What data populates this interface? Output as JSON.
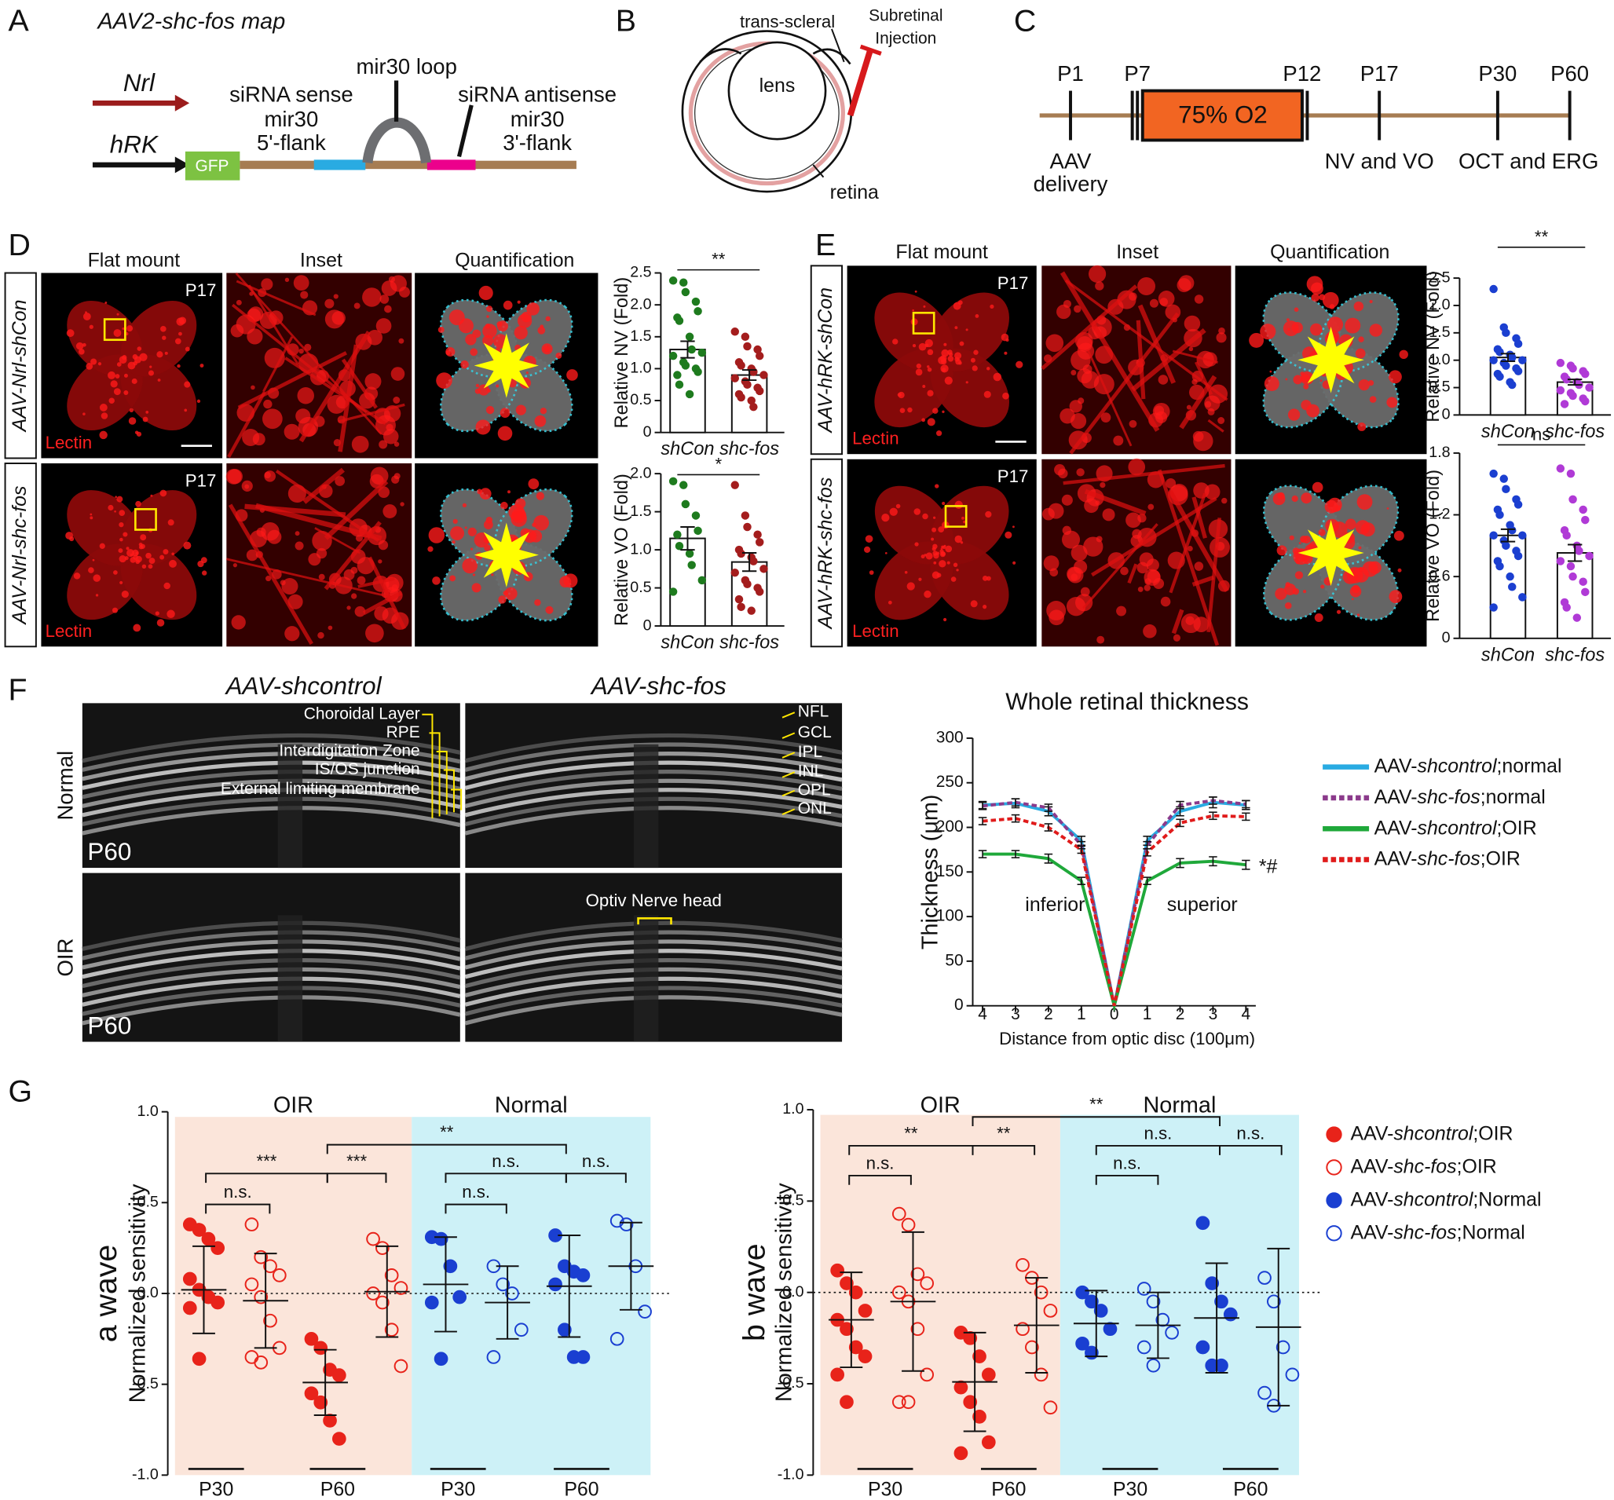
{
  "panel_labels": [
    "A",
    "B",
    "C",
    "D",
    "E",
    "F",
    "G"
  ],
  "panel_a": {
    "title": "AAV2-shc-fos map",
    "promoters": [
      "Nrl",
      "hRK"
    ],
    "reporter": "GFP",
    "elements": [
      "siRNA sense",
      "mir30",
      "5'-flank",
      "mir30 loop",
      "siRNA antisense",
      "mir30",
      "3'-flank"
    ]
  },
  "panel_b": {
    "labels": [
      "trans-scleral",
      "Subretinal",
      "Injection",
      "lens",
      "retina"
    ]
  },
  "panel_c": {
    "timepoints": [
      "P1",
      "P7",
      "P12",
      "P17",
      "P30",
      "P60"
    ],
    "condition": "75% O2",
    "events": [
      "AAV",
      "delivery",
      "NV and VO",
      "OCT and ERG"
    ]
  },
  "panel_d": {
    "columns": [
      "Flat mount",
      "Inset",
      "Quantification"
    ],
    "rows": [
      "AAV-Nrl-shCon",
      "AAV-Nrl-shc-fos"
    ],
    "age": [
      "P17",
      "P17"
    ],
    "stain": [
      "Lectin",
      "Lectin"
    ]
  },
  "panel_e": {
    "columns": [
      "Flat mount",
      "Inset",
      "Quantification"
    ],
    "rows": [
      "AAV-hRK-shCon",
      "AAV-hRK-shc-fos"
    ],
    "age": [
      "P17",
      "P17"
    ],
    "stain": [
      "Lectin",
      "Lectin"
    ]
  },
  "panel_f": {
    "columns": [
      "AAV-shcontrol",
      "AAV-shc-fos"
    ],
    "rows": [
      "Normal",
      "OIR"
    ],
    "ages": [
      "P60",
      "P60"
    ],
    "layers_left": [
      "Choroidal Layer",
      "RPE",
      "Interdigitation Zone",
      "IS/OS junction",
      "External limiting membrane"
    ],
    "layers_right": [
      "NFL",
      "GCL",
      "IPL",
      "INL",
      "OPL",
      "ONL"
    ],
    "annotation": "Optiv Nerve head"
  },
  "chart_data": [
    {
      "type": "bar",
      "y_label": "Relative NV (Fold)",
      "categories": [
        "shCon",
        "shc-fos"
      ],
      "values": [
        1.3,
        0.9
      ],
      "errors": [
        0.13,
        0.08
      ],
      "colors": [
        "#1e7b1e",
        "#a41d1d"
      ],
      "significance": "**",
      "ylim": [
        0,
        2.5
      ],
      "yticks": [
        0,
        0.5,
        {
          "value": 1,
          "label": "1.0"
        },
        1.5,
        {
          "value": 2,
          "label": "2.0"
        },
        2.5
      ],
      "points": [
        [
          2.38,
          2.35,
          2.2,
          2.05,
          1.9,
          1.8,
          1.75,
          1.5,
          1.3,
          1.25,
          1.2,
          1.1,
          1.05,
          1.0,
          0.95,
          0.9,
          0.75,
          0.6
        ],
        [
          1.58,
          1.5,
          1.35,
          1.3,
          1.2,
          1.1,
          1.05,
          1.0,
          0.95,
          0.9,
          0.85,
          0.8,
          0.75,
          0.7,
          0.65,
          0.6,
          0.55,
          0.5,
          0.4
        ]
      ]
    },
    {
      "type": "bar",
      "y_label": "Relative VO (Fold)",
      "categories": [
        "shCon",
        "shc-fos"
      ],
      "values": [
        1.15,
        0.84
      ],
      "errors": [
        0.15,
        0.12
      ],
      "colors": [
        "#1e7b1e",
        "#a41d1d"
      ],
      "significance": "*",
      "ylim": [
        0,
        2
      ],
      "yticks": [
        0,
        0.5,
        {
          "value": 1,
          "label": "1.0"
        },
        1.5,
        {
          "value": 2,
          "label": "2.0"
        }
      ],
      "points": [
        [
          1.9,
          1.85,
          1.6,
          1.45,
          1.25,
          1.2,
          1.05,
          0.95,
          0.8,
          0.6,
          0.45
        ],
        [
          1.85,
          1.45,
          1.3,
          1.2,
          1.1,
          1.0,
          0.95,
          0.9,
          0.85,
          0.75,
          0.7,
          0.6,
          0.55,
          0.5,
          0.45,
          0.35,
          0.25,
          0.2
        ]
      ]
    },
    {
      "type": "bar",
      "y_label": "Relative NV (Fold)",
      "categories": [
        "shCon",
        "shc-fos"
      ],
      "values": [
        1.05,
        0.6
      ],
      "errors": [
        0.07,
        0.05
      ],
      "colors": [
        "#1b3fd0",
        "#b03ad6"
      ],
      "significance": "**",
      "ylim": [
        0,
        2.5
      ],
      "yticks": [
        0,
        0.5,
        {
          "value": 1,
          "label": "1.0"
        },
        1.5,
        {
          "value": 2,
          "label": "2.0"
        },
        2.5
      ],
      "points": [
        [
          2.3,
          1.6,
          1.5,
          1.4,
          1.3,
          1.2,
          1.15,
          1.1,
          1.05,
          1.0,
          1.0,
          0.95,
          0.9,
          0.85,
          0.8,
          0.75,
          0.7,
          0.6,
          0.55
        ],
        [
          0.95,
          0.9,
          0.85,
          0.8,
          0.75,
          0.7,
          0.65,
          0.6,
          0.55,
          0.5,
          0.45,
          0.4,
          0.35,
          0.3,
          0.25,
          0.2
        ]
      ]
    },
    {
      "type": "bar",
      "y_label": "Relative VO (Fold)",
      "categories": [
        "shCon",
        "shc-fos"
      ],
      "values": [
        1.0,
        0.83
      ],
      "errors": [
        0.06,
        0.08
      ],
      "colors": [
        "#1b3fd0",
        "#b03ad6"
      ],
      "significance": "ns",
      "ylim": [
        0,
        1.8
      ],
      "yticks": [
        0,
        0.6,
        1.2,
        1.8
      ],
      "points": [
        [
          1.6,
          1.55,
          1.45,
          1.35,
          1.3,
          1.25,
          1.2,
          1.1,
          1.05,
          1.0,
          1.0,
          0.95,
          0.9,
          0.85,
          0.8,
          0.75,
          0.7,
          0.6,
          0.5,
          0.4,
          0.3
        ],
        [
          1.65,
          1.6,
          1.35,
          1.25,
          1.15,
          1.05,
          1.0,
          0.9,
          0.85,
          0.8,
          0.75,
          0.7,
          0.6,
          0.55,
          0.45,
          0.35,
          0.3,
          0.2
        ]
      ]
    },
    {
      "type": "line",
      "title": "Whole retinal thickness",
      "x_label": "Distance from optic disc (100μm)",
      "y_label": "Thickness (μm)",
      "x": [
        -4,
        -3,
        -2,
        -1,
        0,
        1,
        2,
        3,
        4
      ],
      "xlim": [
        -4.3,
        4.3
      ],
      "xticks": [
        {
          "value": -4,
          "label": "4"
        },
        {
          "value": -3,
          "label": "3"
        },
        {
          "value": -2,
          "label": "2"
        },
        {
          "value": -1,
          "label": "1"
        },
        0,
        1,
        2,
        3,
        4
      ],
      "ylim": [
        0,
        300
      ],
      "yticks": [
        0,
        50,
        100,
        150,
        200,
        250,
        300
      ],
      "legend": "right",
      "annotations": [
        "inferior",
        "superior",
        "*#"
      ],
      "series": [
        {
          "name": "AAV-shcontrol;normal",
          "color": "#29abe2",
          "dashed": false,
          "values": [
            225,
            227,
            218,
            185,
            0,
            185,
            218,
            228,
            225
          ],
          "errors": [
            4,
            5,
            5,
            5,
            0,
            5,
            5,
            6,
            5
          ]
        },
        {
          "name": "AAV-shc-fos;normal",
          "color": "#8b3a8b",
          "dashed": true,
          "values": [
            224,
            228,
            222,
            180,
            0,
            180,
            225,
            230,
            226
          ],
          "errors": [
            4,
            4,
            4,
            4,
            0,
            4,
            4,
            4,
            4
          ]
        },
        {
          "name": "AAV-shcontrol;OIR",
          "color": "#1fa83a",
          "dashed": false,
          "values": [
            170,
            170,
            165,
            140,
            0,
            140,
            160,
            162,
            158
          ],
          "errors": [
            4,
            4,
            5,
            4,
            0,
            4,
            5,
            5,
            5
          ]
        },
        {
          "name": "AAV-shc-fos;OIR",
          "color": "#e01b1b",
          "dashed": true,
          "values": [
            207,
            210,
            200,
            175,
            0,
            172,
            205,
            213,
            212
          ],
          "errors": [
            4,
            4,
            4,
            4,
            0,
            4,
            4,
            4,
            4
          ]
        }
      ]
    },
    {
      "type": "dot",
      "y_label_main": "a wave",
      "y_label": "Normalized sensitivity",
      "groups": [
        "OIR",
        "Normal"
      ],
      "group_colors": [
        "#fbe5da",
        "#cdf1f7"
      ],
      "categories": [
        "P30",
        "P60",
        "P30",
        "P60"
      ],
      "ylim": [
        -1,
        1
      ],
      "reference_line": 0,
      "yticks": [
        {
          "value": -1,
          "label": "-1.0"
        },
        -0.5,
        {
          "value": 0,
          "label": "0.0"
        },
        0.5,
        {
          "value": 1,
          "label": "1.0"
        }
      ],
      "significance": [
        "n.s.",
        "***",
        "***",
        "**",
        "n.s.",
        "n.s.",
        "n.s."
      ],
      "series": [
        {
          "color": "#e8231a",
          "filled": true,
          "means": [
            0.02,
            -0.49,
            null,
            null
          ],
          "sd": [
            0.24,
            0.18,
            null,
            null
          ],
          "points": [
            [
              0.38,
              0.35,
              0.3,
              0.25,
              0.08,
              0.02,
              -0.02,
              -0.05,
              -0.08,
              -0.36
            ],
            [
              -0.25,
              -0.3,
              -0.42,
              -0.45,
              -0.55,
              -0.6,
              -0.7,
              -0.8
            ],
            null,
            null
          ]
        },
        {
          "color": "#e8231a",
          "filled": false,
          "means": [
            -0.04,
            0.01,
            null,
            null
          ],
          "sd": [
            0.26,
            0.25,
            null,
            null
          ],
          "points": [
            [
              0.38,
              0.2,
              0.15,
              0.1,
              0.05,
              -0.02,
              -0.15,
              -0.3,
              -0.35,
              -0.38
            ],
            [
              0.3,
              0.25,
              0.1,
              0.03,
              0.0,
              -0.05,
              -0.2,
              -0.4
            ],
            null,
            null
          ]
        },
        {
          "color": "#1a3fd1",
          "filled": true,
          "means": [
            null,
            null,
            0.05,
            0.04
          ],
          "sd": [
            null,
            null,
            0.26,
            0.28
          ],
          "points": [
            null,
            null,
            [
              0.31,
              0.3,
              0.15,
              -0.02,
              -0.05,
              -0.36
            ],
            [
              0.32,
              0.15,
              0.12,
              0.1,
              0.05,
              -0.2,
              -0.35,
              -0.35
            ]
          ]
        },
        {
          "color": "#1a3fd1",
          "filled": false,
          "means": [
            null,
            null,
            -0.05,
            0.15
          ],
          "sd": [
            null,
            null,
            0.2,
            0.24
          ],
          "points": [
            null,
            null,
            [
              0.15,
              0.05,
              0.0,
              -0.2,
              -0.35
            ],
            [
              0.4,
              0.38,
              0.15,
              -0.1,
              -0.25
            ]
          ]
        }
      ]
    },
    {
      "type": "dot",
      "y_label_main": "b wave",
      "y_label": "Normalized sensitivity",
      "groups": [
        "OIR",
        "Normal"
      ],
      "group_colors": [
        "#fbe5da",
        "#cdf1f7"
      ],
      "categories": [
        "P30",
        "P60",
        "P30",
        "P60"
      ],
      "ylim": [
        -1,
        1
      ],
      "reference_line": 0,
      "legend": "right",
      "yticks": [
        {
          "value": -1,
          "label": "-1.0"
        },
        -0.5,
        {
          "value": 0,
          "label": "0.0"
        },
        0.5,
        {
          "value": 1,
          "label": "1.0"
        }
      ],
      "significance": [
        "n.s.",
        "**",
        "**",
        "**",
        "n.s.",
        "n.s.",
        "n.s."
      ],
      "series": [
        {
          "name": "AAV-shcontrol;OIR",
          "color": "#e8231a",
          "filled": true,
          "means": [
            -0.15,
            -0.49,
            null,
            null
          ],
          "sd": [
            0.26,
            0.27,
            null,
            null
          ],
          "points": [
            [
              0.12,
              0.05,
              0.0,
              -0.1,
              -0.15,
              -0.2,
              -0.3,
              -0.35,
              -0.45,
              -0.6
            ],
            [
              -0.22,
              -0.25,
              -0.35,
              -0.45,
              -0.52,
              -0.6,
              -0.68,
              -0.82,
              -0.88
            ],
            null,
            null
          ]
        },
        {
          "name": "AAV-shc-fos;OIR",
          "color": "#e8231a",
          "filled": false,
          "means": [
            -0.05,
            -0.18,
            null,
            null
          ],
          "sd": [
            0.38,
            0.26,
            null,
            null
          ],
          "points": [
            [
              0.43,
              0.37,
              0.1,
              0.05,
              0.0,
              -0.05,
              -0.2,
              -0.45,
              -0.6,
              -0.6
            ],
            [
              0.15,
              0.08,
              0.0,
              -0.1,
              -0.2,
              -0.3,
              -0.45,
              -0.63
            ],
            null,
            null
          ]
        },
        {
          "name": "AAV-shcontrol;Normal",
          "color": "#1a3fd1",
          "filled": true,
          "means": [
            null,
            null,
            -0.17,
            -0.14
          ],
          "sd": [
            null,
            null,
            0.18,
            0.3
          ],
          "points": [
            null,
            null,
            [
              0.0,
              -0.05,
              -0.1,
              -0.2,
              -0.28,
              -0.33
            ],
            [
              0.38,
              0.05,
              -0.05,
              -0.12,
              -0.3,
              -0.4,
              -0.4
            ]
          ]
        },
        {
          "name": "AAV-shc-fos;Normal",
          "color": "#1a3fd1",
          "filled": false,
          "means": [
            null,
            null,
            -0.18,
            -0.19
          ],
          "sd": [
            null,
            null,
            0.18,
            0.43
          ],
          "points": [
            null,
            null,
            [
              0.02,
              -0.05,
              -0.15,
              -0.22,
              -0.3,
              -0.4
            ],
            [
              0.08,
              -0.05,
              -0.3,
              -0.45,
              -0.55,
              -0.62
            ]
          ]
        }
      ]
    }
  ]
}
